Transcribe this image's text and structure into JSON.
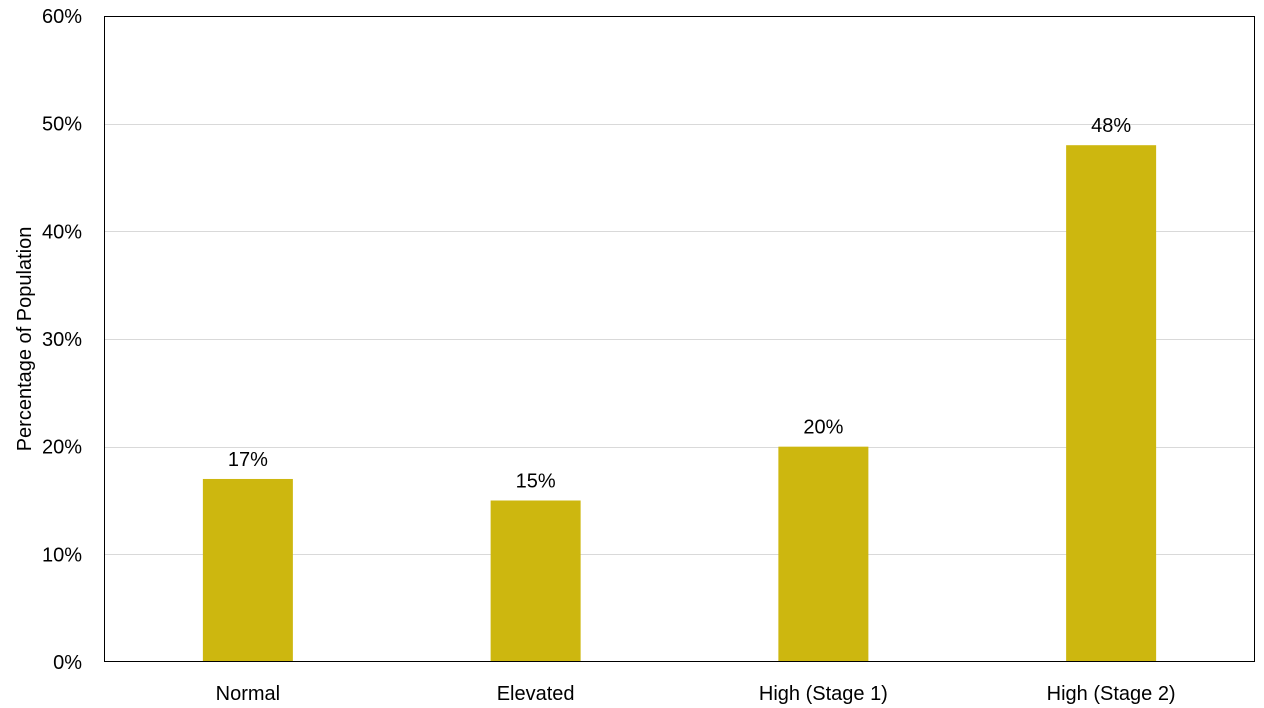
{
  "chart_data": {
    "type": "bar",
    "title": "",
    "xlabel": "",
    "ylabel": "Percentage of Population",
    "categories": [
      "Normal",
      "Elevated",
      "High (Stage 1)",
      "High (Stage 2)"
    ],
    "values": [
      17,
      15,
      20,
      48
    ],
    "data_labels": [
      "17%",
      "15%",
      "20%",
      "48%"
    ],
    "ylim": [
      0,
      60
    ],
    "yticks": [
      0,
      10,
      20,
      30,
      40,
      50,
      60
    ],
    "ytick_labels": [
      "0%",
      "10%",
      "20%",
      "30%",
      "40%",
      "50%",
      "60%"
    ],
    "grid": true,
    "legend": "none",
    "bar_color": "#CDB70F",
    "grid_color": "#D9D9D9",
    "frame_color": "#000000"
  }
}
